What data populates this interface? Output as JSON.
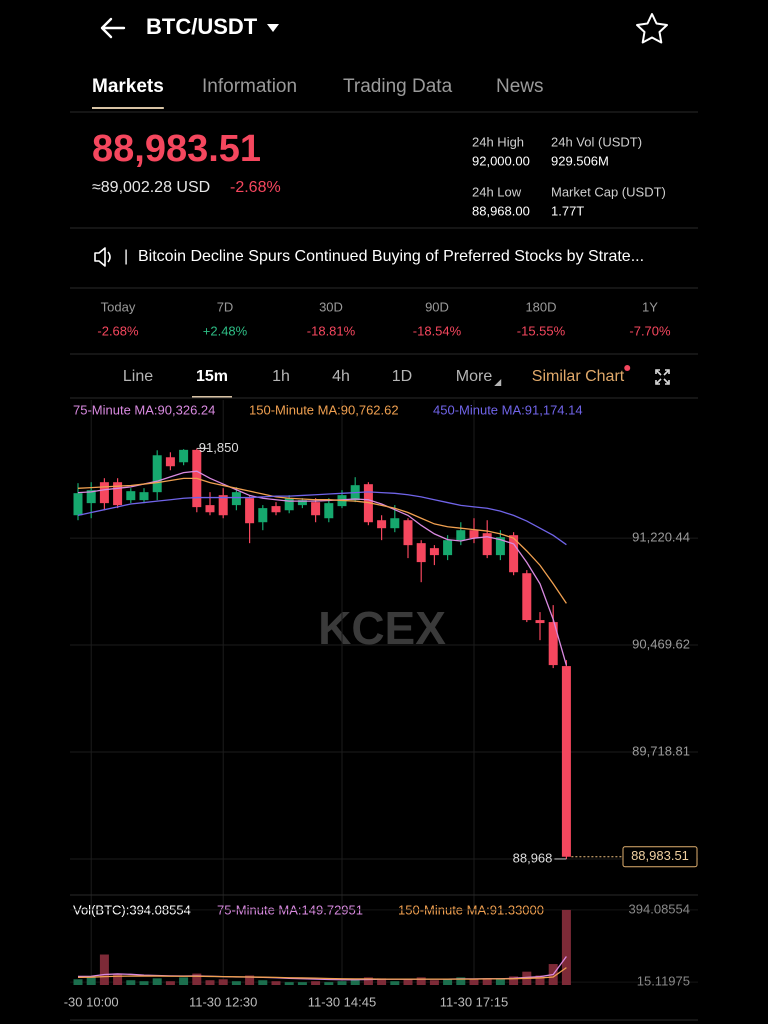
{
  "header": {
    "pair": "BTC/USDT"
  },
  "tabs": [
    "Markets",
    "Information",
    "Trading Data",
    "News"
  ],
  "active_tab": 0,
  "ticker": {
    "price": "88,983.51",
    "usd": "≈89,002.28 USD",
    "change": "-2.68%",
    "stats": [
      {
        "label": "24h High",
        "value": "92,000.00"
      },
      {
        "label": "24h Vol (USDT)",
        "value": "929.506M"
      },
      {
        "label": "24h Low",
        "value": "88,968.00"
      },
      {
        "label": "Market Cap (USDT)",
        "value": "1.77T"
      }
    ]
  },
  "news": {
    "separator": "|",
    "text": "Bitcoin Decline Spurs Continued Buying of Preferred Stocks by Strate..."
  },
  "periods": [
    {
      "label": "Today",
      "change": "-2.68%",
      "color": "#f5475e"
    },
    {
      "label": "7D",
      "change": "+2.48%",
      "color": "#2ebd85"
    },
    {
      "label": "30D",
      "change": "-18.81%",
      "color": "#f5475e"
    },
    {
      "label": "90D",
      "change": "-18.54%",
      "color": "#f5475e"
    },
    {
      "label": "180D",
      "change": "-15.55%",
      "color": "#f5475e"
    },
    {
      "label": "1Y",
      "change": "-7.70%",
      "color": "#f5475e"
    }
  ],
  "intervals": [
    "Line",
    "15m",
    "1h",
    "4h",
    "1D",
    "More",
    "Similar Chart"
  ],
  "active_interval": 1,
  "chart_data": {
    "type": "candlestick",
    "watermark": "KCEX",
    "up_color": "#16a86e",
    "down_color": "#f5475e",
    "categories": [
      null,
      "-30 10:00",
      null,
      null,
      null,
      null,
      null,
      null,
      null,
      null,
      null,
      "11-30 12:30",
      null,
      null,
      null,
      null,
      null,
      null,
      null,
      null,
      "11-30 14:45",
      null,
      null,
      null,
      null,
      null,
      null,
      null,
      null,
      null,
      "11-30 17:15",
      null,
      null,
      null,
      null,
      null,
      null,
      null
    ],
    "open": [
      91381,
      91466,
      91613,
      91613,
      91487,
      91487,
      91543,
      91788,
      91753,
      91840,
      91452,
      91522,
      91452,
      91501,
      91332,
      91445,
      91416,
      91452,
      91473,
      91360,
      91445,
      91487,
      91599,
      91346,
      91290,
      91346,
      91185,
      91150,
      91101,
      91206,
      91276,
      91255,
      91101,
      91241,
      90974,
      90645,
      90631,
      90322
    ],
    "high": [
      91606,
      91613,
      91641,
      91641,
      91571,
      91571,
      91837,
      91823,
      91845,
      91850,
      91543,
      91571,
      91578,
      91515,
      91452,
      91473,
      91522,
      91501,
      91501,
      91501,
      91557,
      91648,
      91613,
      91381,
      91452,
      91360,
      91206,
      91171,
      91241,
      91332,
      91360,
      91346,
      91276,
      91262,
      90996,
      90701,
      90750,
      90364
    ],
    "low": [
      91346,
      91360,
      91416,
      91431,
      91466,
      91466,
      91487,
      91697,
      91732,
      91402,
      91381,
      91360,
      91416,
      91185,
      91276,
      91381,
      91395,
      91431,
      91332,
      91332,
      91431,
      91473,
      91311,
      91206,
      91262,
      91080,
      90911,
      91031,
      91066,
      91171,
      91185,
      91080,
      91066,
      90960,
      90631,
      90504,
      90308,
      88968
    ],
    "close": [
      91536,
      91557,
      91466,
      91452,
      91550,
      91543,
      91802,
      91725,
      91840,
      91438,
      91402,
      91381,
      91543,
      91325,
      91431,
      91402,
      91501,
      91487,
      91381,
      91466,
      91522,
      91592,
      91332,
      91290,
      91360,
      91171,
      91052,
      91101,
      91206,
      91276,
      91220,
      91101,
      91227,
      90981,
      90645,
      90624,
      90329,
      88983.51
    ],
    "series": [
      {
        "name": "75-Minute MA:90,326.24",
        "color": "#d98ae0",
        "values": [
          91540,
          91545,
          91560,
          91570,
          91580,
          91600,
          91620,
          91650,
          91680,
          91690,
          91640,
          91600,
          91560,
          91520,
          91500,
          91490,
          91480,
          91480,
          91480,
          91485,
          91490,
          91495,
          91490,
          91460,
          91420,
          91380,
          91310,
          91250,
          91210,
          91200,
          91220,
          91230,
          91210,
          91180,
          91050,
          90900,
          90650,
          90326.24
        ]
      },
      {
        "name": "150-Minute MA:90,762.62",
        "color": "#f0a050",
        "values": [
          91570,
          91575,
          91580,
          91585,
          91590,
          91600,
          91610,
          91625,
          91640,
          91640,
          91610,
          91590,
          91570,
          91550,
          91530,
          91510,
          91500,
          91495,
          91490,
          91490,
          91485,
          91480,
          91470,
          91450,
          91430,
          91400,
          91360,
          91320,
          91300,
          91290,
          91280,
          91270,
          91250,
          91220,
          91130,
          91030,
          90900,
          90762.62
        ]
      },
      {
        "name": "450-Minute MA:91,174.14",
        "color": "#7064e8",
        "values": [
          91380,
          91400,
          91420,
          91440,
          91460,
          91470,
          91480,
          91490,
          91500,
          91505,
          91505,
          91505,
          91505,
          91505,
          91510,
          91515,
          91515,
          91520,
          91525,
          91530,
          91535,
          91540,
          91545,
          91540,
          91535,
          91525,
          91510,
          91490,
          91470,
          91450,
          91440,
          91430,
          91410,
          91380,
          91340,
          91290,
          91240,
          91174.14
        ]
      }
    ],
    "ylim": [
      88715,
      92190
    ],
    "yticks": [
      {
        "value": 91220.44,
        "label": "91,220.44"
      },
      {
        "value": 90469.62,
        "label": "90,469.62"
      },
      {
        "value": 89718.81,
        "label": "89,718.81"
      },
      {
        "value": 88968.0,
        "label": "88,968.00"
      }
    ],
    "high_marker": {
      "value": 91850,
      "label": "91,850"
    },
    "low_marker": {
      "value": 88968,
      "label": "88,968"
    },
    "current_price": {
      "value": 88983.51,
      "label": "88,983.51"
    },
    "volume": {
      "title": "Vol(BTC):394.08554",
      "up_color": "#1b6e4d",
      "down_color": "#7d2a37",
      "values": [
        30,
        45,
        160,
        55,
        25,
        20,
        35,
        20,
        40,
        60,
        25,
        30,
        20,
        50,
        25,
        20,
        15,
        15,
        20,
        15,
        20,
        30,
        40,
        35,
        20,
        30,
        40,
        25,
        30,
        40,
        30,
        35,
        30,
        45,
        70,
        50,
        110,
        394.08554
      ],
      "series": [
        {
          "name": "75-Minute MA:149.72951",
          "color": "#d98ae0",
          "values": [
            45,
            46,
            55,
            58,
            56,
            52,
            50,
            48,
            47,
            48,
            46,
            44,
            42,
            42,
            40,
            38,
            35,
            33,
            31,
            29,
            28,
            28,
            29,
            30,
            30,
            30,
            31,
            31,
            31,
            32,
            32,
            33,
            33,
            35,
            40,
            44,
            55,
            149.72951
          ]
        },
        {
          "name": "150-Minute MA:91.33000",
          "color": "#f0a050",
          "values": [
            40,
            41,
            44,
            46,
            47,
            47,
            47,
            46,
            46,
            46,
            45,
            44,
            43,
            42,
            41,
            40,
            38,
            37,
            36,
            34,
            33,
            32,
            32,
            31,
            31,
            31,
            31,
            31,
            31,
            31,
            31,
            32,
            32,
            33,
            35,
            37,
            42,
            91.33
          ]
        }
      ],
      "ylim": [
        0,
        420
      ],
      "yticks": [
        15.11975,
        394.08554
      ]
    }
  }
}
